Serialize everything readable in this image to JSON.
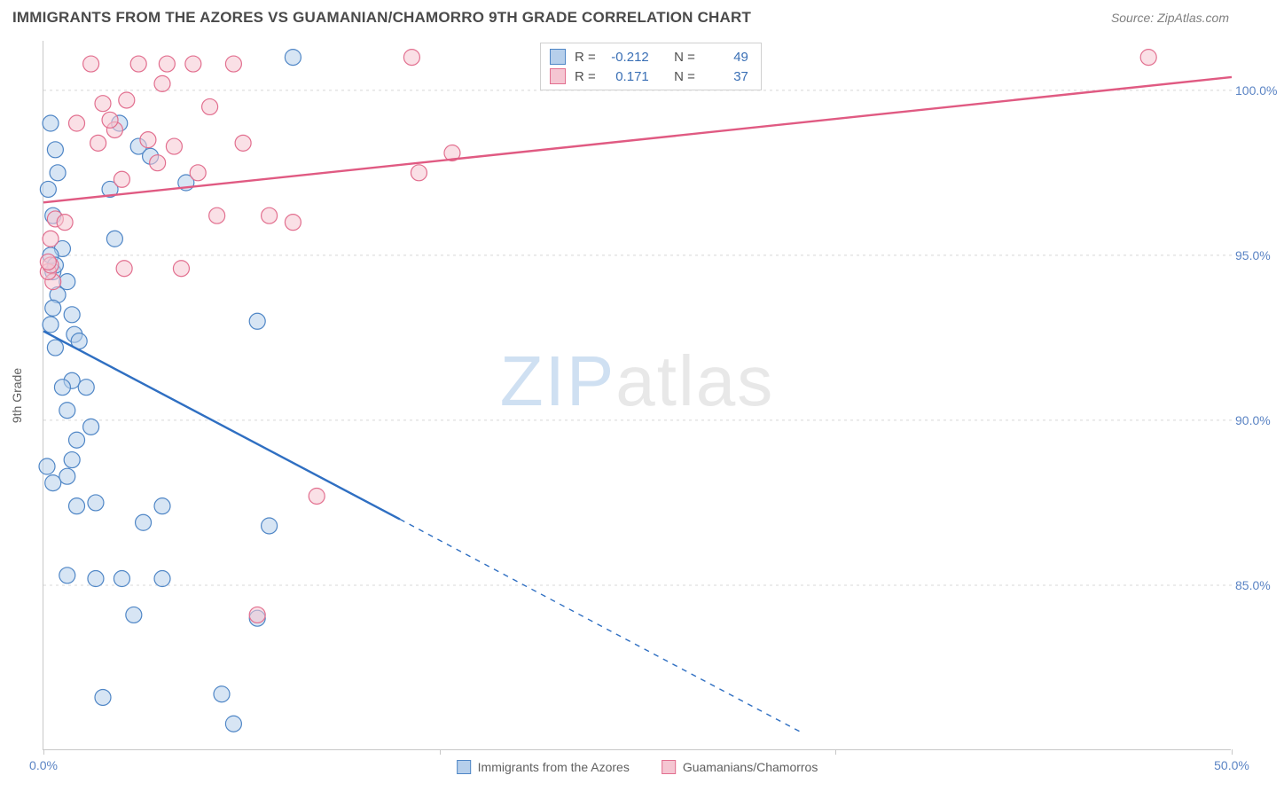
{
  "header": {
    "title": "IMMIGRANTS FROM THE AZORES VS GUAMANIAN/CHAMORRO 9TH GRADE CORRELATION CHART",
    "source": "Source: ZipAtlas.com"
  },
  "watermark": {
    "zip": "ZIP",
    "atlas": "atlas"
  },
  "y_axis": {
    "label": "9th Grade"
  },
  "chart": {
    "type": "scatter-correlation",
    "background_color": "#ffffff",
    "grid_color": "#d8d8d8",
    "axis_color": "#c8c8c8",
    "tick_label_color": "#5b84c4",
    "tick_label_fontsize": 14,
    "xlim": [
      0,
      50
    ],
    "ylim": [
      80,
      101.5
    ],
    "y_ticks": [
      85.0,
      90.0,
      95.0,
      100.0
    ],
    "y_tick_labels": [
      "85.0%",
      "90.0%",
      "95.0%",
      "100.0%"
    ],
    "x_ticks": [
      0,
      16.67,
      33.33,
      50
    ],
    "x_tick_labels_shown": {
      "0": "0.0%",
      "50": "50.0%"
    },
    "marker_radius": 9,
    "marker_stroke_width": 1.2,
    "line_width": 2.4,
    "dash_pattern": "6 6",
    "series": [
      {
        "name": "Immigrants from the Azores",
        "fill": "#b6cfeb",
        "stroke": "#4f86c6",
        "line_color": "#2f6fc2",
        "R_label": "R =",
        "R": "-0.212",
        "N_label": "N =",
        "N": "49",
        "trend": {
          "x1": 0,
          "y1": 92.7,
          "solid_end_x": 15,
          "solid_end_y": 87.0,
          "dash_end_x": 32,
          "dash_end_y": 80.5
        },
        "points": [
          [
            0.2,
            97.0
          ],
          [
            0.3,
            99.0
          ],
          [
            0.5,
            98.2
          ],
          [
            0.6,
            97.5
          ],
          [
            0.4,
            96.2
          ],
          [
            0.8,
            95.2
          ],
          [
            0.3,
            95.0
          ],
          [
            0.4,
            94.5
          ],
          [
            0.5,
            94.7
          ],
          [
            1.0,
            94.2
          ],
          [
            0.6,
            93.8
          ],
          [
            1.2,
            93.2
          ],
          [
            0.4,
            93.4
          ],
          [
            0.3,
            92.9
          ],
          [
            1.3,
            92.6
          ],
          [
            1.5,
            92.4
          ],
          [
            0.5,
            92.2
          ],
          [
            1.2,
            91.2
          ],
          [
            0.8,
            91.0
          ],
          [
            1.8,
            91.0
          ],
          [
            1.0,
            90.3
          ],
          [
            2.0,
            89.8
          ],
          [
            1.4,
            89.4
          ],
          [
            1.2,
            88.8
          ],
          [
            1.0,
            88.3
          ],
          [
            0.4,
            88.1
          ],
          [
            1.4,
            87.4
          ],
          [
            2.2,
            87.5
          ],
          [
            5.0,
            87.4
          ],
          [
            4.2,
            86.9
          ],
          [
            9.5,
            86.8
          ],
          [
            1.0,
            85.3
          ],
          [
            2.2,
            85.2
          ],
          [
            3.3,
            85.2
          ],
          [
            5.0,
            85.2
          ],
          [
            3.8,
            84.1
          ],
          [
            9.0,
            84.0
          ],
          [
            2.5,
            81.6
          ],
          [
            7.5,
            81.7
          ],
          [
            8.0,
            80.8
          ],
          [
            4.0,
            98.3
          ],
          [
            4.5,
            98.0
          ],
          [
            6.0,
            97.2
          ],
          [
            9.0,
            93.0
          ],
          [
            10.5,
            101.0
          ],
          [
            2.8,
            97.0
          ],
          [
            3.0,
            95.5
          ],
          [
            3.2,
            99.0
          ],
          [
            0.15,
            88.6
          ]
        ]
      },
      {
        "name": "Guamanians/Chamorros",
        "fill": "#f5c6d2",
        "stroke": "#e26f8f",
        "line_color": "#e05a82",
        "R_label": "R =",
        "R": "0.171",
        "N_label": "N =",
        "N": "37",
        "trend": {
          "x1": 0,
          "y1": 96.6,
          "solid_end_x": 50,
          "solid_end_y": 100.4,
          "dash_end_x": 50,
          "dash_end_y": 100.4
        },
        "points": [
          [
            0.5,
            96.1
          ],
          [
            0.3,
            95.5
          ],
          [
            0.9,
            96.0
          ],
          [
            0.4,
            94.2
          ],
          [
            0.2,
            94.5
          ],
          [
            0.3,
            94.7
          ],
          [
            1.4,
            99.0
          ],
          [
            2.0,
            100.8
          ],
          [
            2.3,
            98.4
          ],
          [
            2.5,
            99.6
          ],
          [
            3.0,
            98.8
          ],
          [
            3.3,
            97.3
          ],
          [
            3.5,
            99.7
          ],
          [
            4.0,
            100.8
          ],
          [
            4.4,
            98.5
          ],
          [
            4.8,
            97.8
          ],
          [
            3.4,
            94.6
          ],
          [
            5.0,
            100.2
          ],
          [
            5.2,
            100.8
          ],
          [
            5.5,
            98.3
          ],
          [
            5.8,
            94.6
          ],
          [
            6.5,
            97.5
          ],
          [
            6.3,
            100.8
          ],
          [
            7.0,
            99.5
          ],
          [
            7.3,
            96.2
          ],
          [
            8.0,
            100.8
          ],
          [
            8.4,
            98.4
          ],
          [
            9.5,
            96.2
          ],
          [
            10.5,
            96.0
          ],
          [
            15.5,
            101.0
          ],
          [
            15.8,
            97.5
          ],
          [
            17.2,
            98.1
          ],
          [
            11.5,
            87.7
          ],
          [
            9.0,
            84.1
          ],
          [
            46.5,
            101.0
          ],
          [
            0.2,
            94.8
          ],
          [
            2.8,
            99.1
          ]
        ]
      }
    ]
  },
  "bottom_legend": [
    {
      "label": "Immigrants from the Azores",
      "fill": "#b6cfeb",
      "stroke": "#4f86c6"
    },
    {
      "label": "Guamanians/Chamorros",
      "fill": "#f5c6d2",
      "stroke": "#e26f8f"
    }
  ]
}
